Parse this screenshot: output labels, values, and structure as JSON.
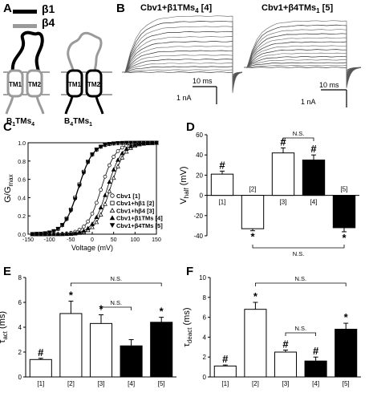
{
  "panel_a": {
    "letter": "A",
    "legend": [
      {
        "label": "β1",
        "color": "#000000"
      },
      {
        "label": "β4",
        "color": "#9a9a9a"
      }
    ],
    "tm1": "TM1",
    "tm2": "TM2",
    "construct1": {
      "main": "B",
      "sub1": "1",
      "mid": "TMs",
      "sub2": "4"
    },
    "construct2": {
      "main": "B",
      "sub1": "4",
      "mid": "TMs",
      "sub2": "1"
    }
  },
  "panel_b": {
    "letter": "B",
    "title1": {
      "main": "Cbv1+β1TMs",
      "sub": "4",
      "tag": " [4]"
    },
    "title2": {
      "main": "Cbv1+β4TMs",
      "sub": "1",
      "tag": " [5]"
    },
    "scale_time": "10 ms",
    "scale_current": "1 nA"
  },
  "chart_data": [
    {
      "panel": "C",
      "type": "scatter",
      "ylabel": "G/G",
      "ylabel_sub": "max",
      "xlabel": "Voltage (mV)",
      "xlim": [
        -150,
        150
      ],
      "ylim": [
        0.0,
        1.0
      ],
      "xticks": [
        "-150",
        "-100",
        "-50",
        "0",
        "50",
        "100",
        "150"
      ],
      "yticks": [
        "0.0",
        "0.2",
        "0.4",
        "0.6",
        "0.8",
        "1.0"
      ],
      "series": [
        {
          "name": "Cbv1 [1]",
          "marker": "circle-open",
          "v_half": 21
        },
        {
          "name": "Cbv1+hβ1 [2]",
          "marker": "square-open",
          "v_half": -33
        },
        {
          "name": "Cbv1+hβ4 [3]",
          "marker": "triangle-open",
          "v_half": 42
        },
        {
          "name": "Cbv1+β1TMs [4]",
          "marker": "triangle-filled",
          "v_half": 35
        },
        {
          "name": "Cbv1+β4TMs [5]",
          "marker": "triangle-down-filled",
          "v_half": -32
        }
      ]
    },
    {
      "panel": "D",
      "type": "bar",
      "ylabel": "V",
      "ylabel_sub": "half",
      "ylabel_unit": "(mV)",
      "ylim": [
        -40,
        60
      ],
      "yticks": [
        "-40",
        "-20",
        "0",
        "20",
        "40",
        "60"
      ],
      "categories": [
        "[1]",
        "[2]",
        "[3]",
        "[4]",
        "[5]"
      ],
      "values": [
        21,
        -33,
        42,
        35,
        -32
      ],
      "errors": [
        3,
        2,
        5,
        5,
        4
      ],
      "fills": [
        "#ffffff",
        "#ffffff",
        "#ffffff",
        "#000000",
        "#000000"
      ],
      "marks": [
        "#",
        "*",
        "#",
        "#",
        "*"
      ],
      "ns_label": "N.S."
    },
    {
      "panel": "E",
      "type": "bar",
      "ylabel": "τ",
      "ylabel_sub": "act",
      "ylabel_unit": "(ms)",
      "ylim": [
        0,
        8
      ],
      "yticks": [
        "0",
        "2",
        "4",
        "6",
        "8"
      ],
      "categories": [
        "[1]",
        "[2]",
        "[3]",
        "[4]",
        "[5]"
      ],
      "values": [
        1.4,
        5.1,
        4.3,
        2.5,
        4.4
      ],
      "errors": [
        0.1,
        1.0,
        0.7,
        0.5,
        0.4
      ],
      "fills": [
        "#ffffff",
        "#ffffff",
        "#ffffff",
        "#000000",
        "#000000"
      ],
      "marks": [
        "#",
        "*",
        "*",
        "",
        "*"
      ],
      "ns_label": "N.S."
    },
    {
      "panel": "F",
      "type": "bar",
      "ylabel": "τ",
      "ylabel_sub": "deact",
      "ylabel_unit": "(ms)",
      "ylim": [
        0,
        10
      ],
      "yticks": [
        "0",
        "2",
        "4",
        "6",
        "8",
        "10"
      ],
      "categories": [
        "[1]",
        "[2]",
        "[3]",
        "[4]",
        "[5]"
      ],
      "values": [
        1.1,
        6.8,
        2.5,
        1.6,
        4.8
      ],
      "errors": [
        0.1,
        0.7,
        0.2,
        0.4,
        0.6
      ],
      "fills": [
        "#ffffff",
        "#ffffff",
        "#ffffff",
        "#000000",
        "#000000"
      ],
      "marks": [
        "#",
        "*",
        "#",
        "#",
        "*"
      ],
      "ns_label": "N.S."
    }
  ]
}
